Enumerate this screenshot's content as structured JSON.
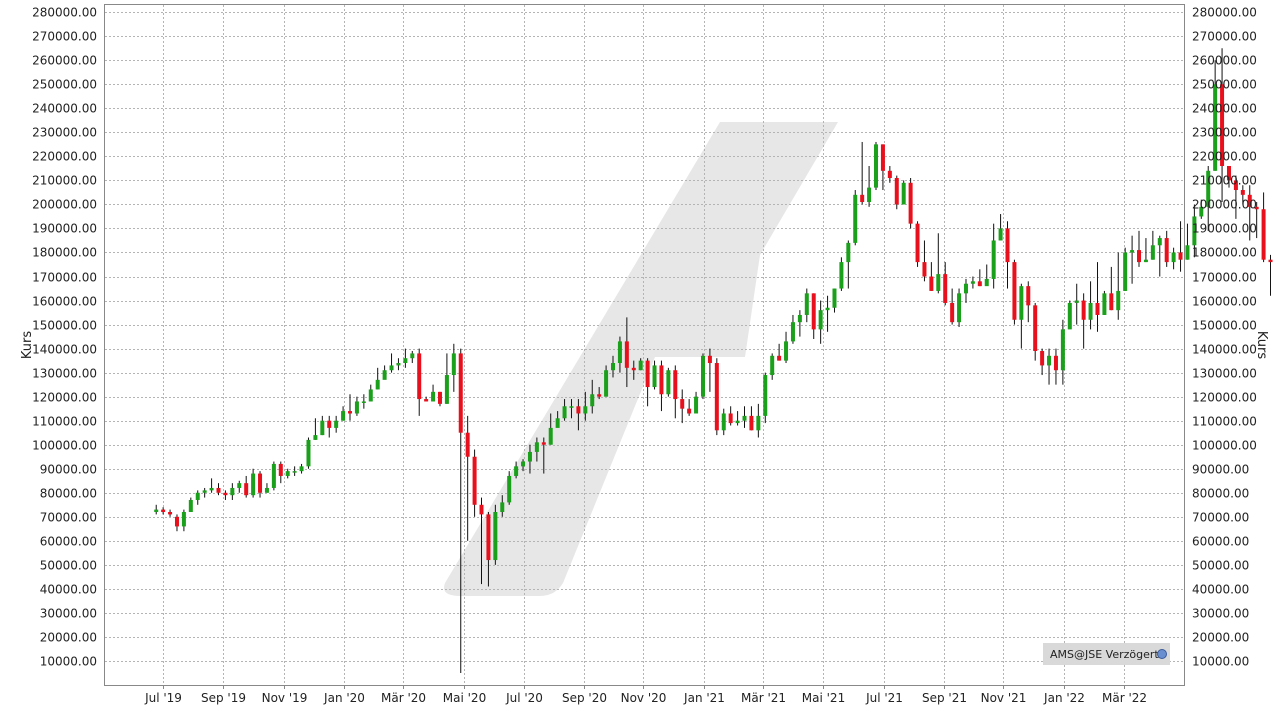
{
  "chart_data": {
    "type": "candlestick",
    "ylabel_left": "Kurs",
    "ylabel_right": "Kurs",
    "ylim": [
      0,
      283000
    ],
    "y_ticks": [
      "10000.00",
      "20000.00",
      "30000.00",
      "40000.00",
      "50000.00",
      "60000.00",
      "70000.00",
      "80000.00",
      "90000.00",
      "100000.00",
      "110000.00",
      "120000.00",
      "130000.00",
      "140000.00",
      "150000.00",
      "160000.00",
      "170000.00",
      "180000.00",
      "190000.00",
      "200000.00",
      "210000.00",
      "220000.00",
      "230000.00",
      "240000.00",
      "250000.00",
      "260000.00",
      "270000.00",
      "280000.00"
    ],
    "x_ticks": [
      "Jul '19",
      "Sep '19",
      "Nov '19",
      "Jan '20",
      "Mär '20",
      "Mai '20",
      "Jul '20",
      "Sep '20",
      "Nov '20",
      "Jan '21",
      "Mär '21",
      "Mai '21",
      "Jul '21",
      "Sep '21",
      "Nov '21",
      "Jan '22",
      "Mär '22"
    ],
    "x_tick_positions": [
      1,
      9.7,
      18.4,
      27.1,
      35.7,
      44.4,
      53.1,
      61.8,
      70.4,
      79.1,
      87.7,
      96.4,
      105.1,
      113.8,
      122.4,
      131.1,
      139.8
    ],
    "x_range": [
      -7.4,
      148.5
    ],
    "grid": true,
    "up_color": "#1aa01a",
    "down_color": "#e8101c",
    "candles": [
      [
        72,
        73,
        75,
        71
      ],
      [
        73,
        72,
        74,
        71
      ],
      [
        72,
        71,
        73,
        70
      ],
      [
        70,
        66,
        71,
        64
      ],
      [
        66,
        72,
        73,
        64
      ],
      [
        72,
        77,
        78,
        72
      ],
      [
        77,
        80,
        81,
        75
      ],
      [
        80,
        81,
        82,
        78
      ],
      [
        81,
        82,
        86,
        80
      ],
      [
        82,
        80,
        84,
        79
      ],
      [
        80,
        79,
        81,
        77
      ],
      [
        79,
        82,
        84,
        77
      ],
      [
        82,
        84,
        85,
        80
      ],
      [
        84,
        79,
        87,
        78
      ],
      [
        79,
        88,
        90,
        78
      ],
      [
        88,
        80,
        89,
        78
      ],
      [
        80,
        82,
        84,
        80
      ],
      [
        82,
        92,
        93,
        81
      ],
      [
        92,
        87,
        93,
        84
      ],
      [
        87,
        89,
        90,
        86
      ],
      [
        89,
        89,
        91,
        87
      ],
      [
        89,
        91,
        92,
        88
      ],
      [
        91,
        102,
        103,
        90
      ],
      [
        102,
        104,
        111,
        102
      ],
      [
        104,
        110,
        112,
        104
      ],
      [
        110,
        107,
        112,
        103
      ],
      [
        107,
        110,
        112,
        105
      ],
      [
        110,
        114,
        116,
        110
      ],
      [
        114,
        113,
        121,
        110
      ],
      [
        113,
        118,
        120,
        112
      ],
      [
        118,
        118,
        121,
        115
      ],
      [
        118,
        123,
        125,
        118
      ],
      [
        123,
        127,
        132,
        123
      ],
      [
        127,
        131,
        133,
        128
      ],
      [
        131,
        133,
        138,
        130
      ],
      [
        133,
        134,
        136,
        131
      ],
      [
        134,
        136,
        140,
        132
      ],
      [
        136,
        138,
        139,
        134
      ],
      [
        138,
        119,
        140,
        112
      ],
      [
        119,
        118,
        120,
        118
      ],
      [
        118,
        122,
        125,
        118
      ],
      [
        122,
        117,
        122,
        116
      ],
      [
        117,
        129,
        138,
        117
      ],
      [
        129,
        138,
        142,
        122
      ],
      [
        138,
        105,
        140,
        5
      ],
      [
        105,
        95,
        112,
        60
      ],
      [
        95,
        75,
        98,
        70
      ],
      [
        75,
        71,
        78,
        42
      ],
      [
        71,
        52,
        72,
        41
      ],
      [
        52,
        72,
        75,
        50
      ],
      [
        72,
        76,
        79,
        70
      ],
      [
        76,
        87,
        89,
        75
      ],
      [
        87,
        91,
        93,
        86
      ],
      [
        91,
        93,
        94,
        89
      ],
      [
        93,
        97,
        100,
        88
      ],
      [
        97,
        101,
        103,
        93
      ],
      [
        101,
        100,
        103,
        88
      ],
      [
        100,
        107,
        113,
        100
      ],
      [
        107,
        111,
        114,
        110
      ],
      [
        111,
        116,
        119,
        110
      ],
      [
        116,
        116,
        119,
        111
      ],
      [
        116,
        113,
        119,
        106
      ],
      [
        113,
        116,
        122,
        110
      ],
      [
        116,
        121,
        127,
        113
      ],
      [
        121,
        120,
        124,
        119
      ],
      [
        120,
        131,
        133,
        120
      ],
      [
        131,
        134,
        137,
        128
      ],
      [
        134,
        143,
        145,
        130
      ],
      [
        143,
        132,
        153,
        124
      ],
      [
        132,
        131,
        135,
        127
      ],
      [
        131,
        135,
        136,
        131
      ],
      [
        135,
        124,
        136,
        116
      ],
      [
        124,
        133,
        135,
        123
      ],
      [
        133,
        121,
        135,
        114
      ],
      [
        121,
        131,
        132,
        120
      ],
      [
        131,
        119,
        133,
        111
      ],
      [
        119,
        115,
        123,
        109
      ],
      [
        115,
        113,
        119,
        112
      ],
      [
        113,
        120,
        122,
        118
      ],
      [
        120,
        137,
        138,
        119
      ],
      [
        137,
        134,
        140,
        122
      ],
      [
        134,
        106,
        136,
        104
      ],
      [
        106,
        113,
        115,
        104
      ],
      [
        113,
        109,
        116,
        108
      ],
      [
        109,
        110,
        114,
        108
      ],
      [
        110,
        112,
        116,
        107
      ],
      [
        112,
        106,
        116,
        106
      ],
      [
        106,
        112,
        117,
        103
      ],
      [
        112,
        129,
        130,
        109
      ],
      [
        129,
        137,
        138,
        127
      ],
      [
        137,
        135,
        142,
        135
      ],
      [
        135,
        143,
        147,
        134
      ],
      [
        143,
        151,
        154,
        142
      ],
      [
        151,
        154,
        156,
        145
      ],
      [
        154,
        163,
        165,
        151
      ],
      [
        163,
        148,
        163,
        144
      ],
      [
        148,
        156,
        160,
        142
      ],
      [
        156,
        157,
        162,
        147
      ],
      [
        157,
        165,
        165,
        155
      ],
      [
        165,
        176,
        178,
        164
      ],
      [
        176,
        184,
        185,
        165
      ],
      [
        184,
        204,
        206,
        183
      ],
      [
        204,
        201,
        226,
        200
      ],
      [
        201,
        207,
        216,
        199
      ],
      [
        207,
        225,
        226,
        206
      ],
      [
        225,
        214,
        225,
        206
      ],
      [
        214,
        211,
        216,
        209
      ],
      [
        211,
        200,
        212,
        198
      ],
      [
        200,
        209,
        210,
        200
      ],
      [
        209,
        192,
        211,
        190
      ],
      [
        192,
        176,
        193,
        174
      ],
      [
        176,
        170,
        185,
        168
      ],
      [
        170,
        164,
        176,
        164
      ],
      [
        164,
        171,
        188,
        163
      ],
      [
        171,
        159,
        176,
        158
      ],
      [
        159,
        151,
        165,
        150
      ],
      [
        151,
        163,
        165,
        149
      ],
      [
        163,
        167,
        169,
        159
      ],
      [
        167,
        168,
        170,
        165
      ],
      [
        168,
        166,
        173,
        166
      ],
      [
        166,
        169,
        175,
        167
      ],
      [
        169,
        185,
        192,
        165
      ],
      [
        185,
        190,
        196,
        185
      ],
      [
        190,
        176,
        193,
        165
      ],
      [
        176,
        152,
        177,
        150
      ],
      [
        152,
        166,
        167,
        140
      ],
      [
        166,
        158,
        168,
        151
      ],
      [
        158,
        139,
        159,
        135
      ],
      [
        139,
        133,
        140,
        129
      ],
      [
        133,
        137,
        140,
        125
      ],
      [
        137,
        131,
        140,
        125
      ],
      [
        131,
        148,
        152,
        125
      ],
      [
        148,
        159,
        160,
        149
      ],
      [
        159,
        160,
        167,
        150
      ],
      [
        160,
        152,
        163,
        140
      ],
      [
        152,
        159,
        168,
        148
      ],
      [
        159,
        154,
        176,
        147
      ],
      [
        154,
        163,
        164,
        154
      ],
      [
        163,
        156,
        174,
        156
      ],
      [
        156,
        164,
        180,
        152
      ],
      [
        164,
        180,
        182,
        164
      ],
      [
        180,
        181,
        187,
        167
      ],
      [
        181,
        176,
        189,
        174
      ],
      [
        176,
        177,
        186,
        176
      ],
      [
        177,
        183,
        189,
        177
      ],
      [
        183,
        186,
        187,
        170
      ],
      [
        186,
        176,
        189,
        174
      ],
      [
        176,
        180,
        182,
        173
      ],
      [
        180,
        177,
        193,
        172
      ],
      [
        177,
        183,
        192,
        177
      ],
      [
        183,
        195,
        200,
        178
      ],
      [
        195,
        199,
        202,
        194
      ],
      [
        199,
        214,
        216,
        189
      ],
      [
        214,
        250,
        260,
        214
      ],
      [
        250,
        216,
        265,
        201
      ],
      [
        216,
        210,
        213,
        207
      ],
      [
        210,
        206,
        212,
        194
      ],
      [
        206,
        204,
        208,
        200
      ],
      [
        204,
        199,
        208,
        185
      ],
      [
        199,
        198,
        201,
        186
      ],
      [
        198,
        177,
        205,
        176
      ],
      [
        177,
        176,
        179,
        162
      ]
    ]
  },
  "badge": {
    "text": "AMS@JSE Verzögert"
  }
}
